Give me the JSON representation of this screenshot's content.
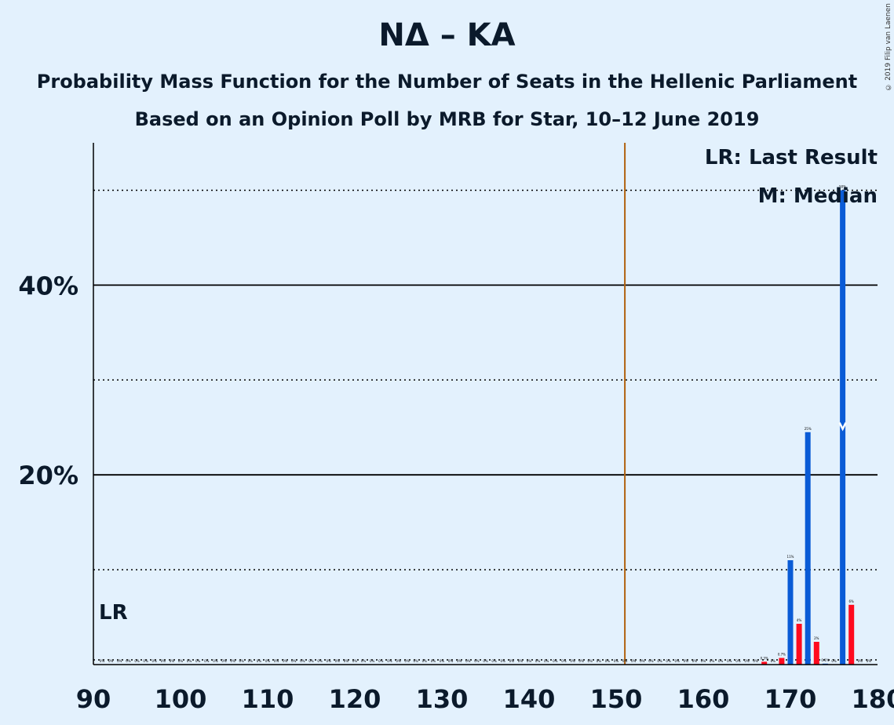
{
  "title": "NΔ – KA",
  "subtitle_1": "Probability Mass Function for the Number of Seats in the Hellenic Parliament",
  "subtitle_2": "Based on an Opinion Poll by MRB for Star, 10–12 June 2019",
  "copyright": "© 2019 Filip van Laenen",
  "legend": {
    "last_result": "LR: Last Result",
    "median": "M: Median"
  },
  "lr_label": "LR",
  "colors": {
    "background": "#e3f1fd",
    "blue_bar": "#0a5bd6",
    "red_bar": "#ff0a1e",
    "majority_line": "#b0620f",
    "axis": "#000000"
  },
  "chart_data": {
    "type": "bar",
    "xlim": [
      90,
      180
    ],
    "ylim": [
      0,
      55
    ],
    "x_ticks": [
      90,
      100,
      110,
      120,
      130,
      140,
      150,
      160,
      170,
      180
    ],
    "y_ticks_labeled": [
      {
        "value": 20,
        "label": "20%"
      },
      {
        "value": 40,
        "label": "40%"
      }
    ],
    "y_gridlines_solid": [
      20,
      40
    ],
    "y_gridlines_dotted": [
      0.5,
      10,
      30,
      50
    ],
    "majority_line_x": 151,
    "last_result_x": 90,
    "median_x": 176,
    "series": [
      {
        "color_key": "blue_bar",
        "bars": [
          {
            "x": 170,
            "value": 11,
            "label": "11%"
          },
          {
            "x": 172,
            "value": 24.5,
            "label": "25%"
          },
          {
            "x": 174,
            "value": 0.1,
            "label": "0.1%"
          },
          {
            "x": 176,
            "value": 50,
            "label": "50%"
          }
        ]
      },
      {
        "color_key": "red_bar",
        "bars": [
          {
            "x": 167,
            "value": 0.3,
            "label": "0.3%"
          },
          {
            "x": 169,
            "value": 0.7,
            "label": "0.7%"
          },
          {
            "x": 171,
            "value": 4.3,
            "label": "4%"
          },
          {
            "x": 173,
            "value": 2.4,
            "label": "2%"
          },
          {
            "x": 177,
            "value": 6.3,
            "label": "6%"
          }
        ]
      }
    ],
    "zero_labels": {
      "x_from": 91,
      "x_to": 179,
      "label": "0%",
      "exclude": [
        167,
        169,
        170,
        171,
        172,
        173,
        174,
        176,
        177
      ]
    }
  }
}
